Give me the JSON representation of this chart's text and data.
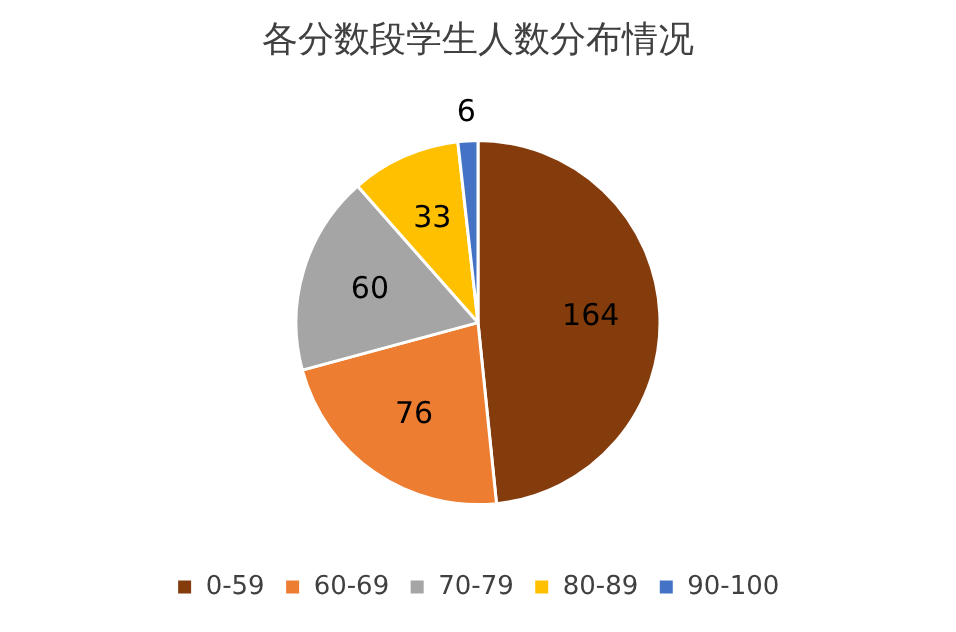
{
  "chart_data": {
    "type": "pie",
    "title": "各分数段学生人数分布情况",
    "categories": [
      "0-59",
      "60-69",
      "70-79",
      "80-89",
      "90-100"
    ],
    "values": [
      164,
      76,
      60,
      33,
      6
    ],
    "colors": [
      "#843c0c",
      "#ed7d31",
      "#a5a5a5",
      "#ffc000",
      "#4472c4"
    ],
    "data_labels": true,
    "legend": "bottom"
  }
}
